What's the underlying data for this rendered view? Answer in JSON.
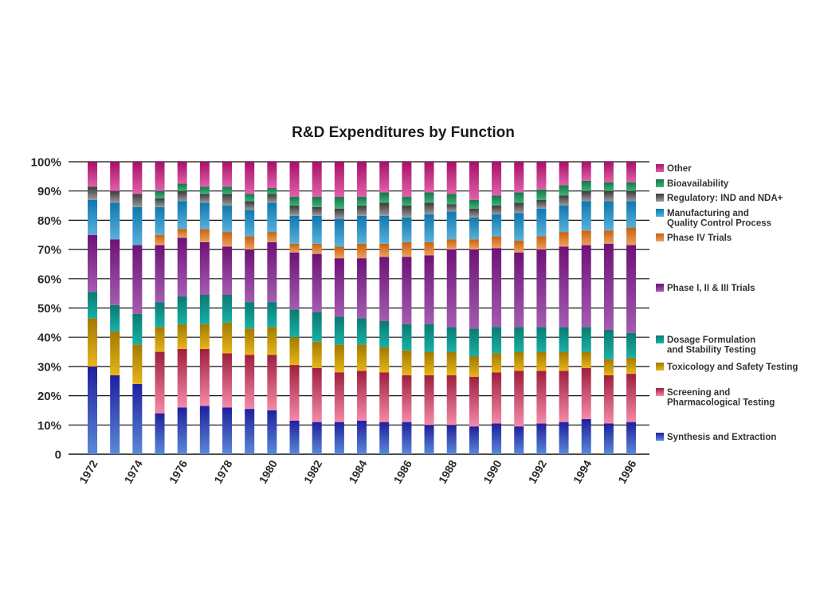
{
  "chart_data": {
    "type": "bar",
    "stacked": true,
    "normalized": true,
    "title": "R&D Expenditures by Function",
    "xlabel": "",
    "ylabel": "",
    "ylim": [
      0,
      100
    ],
    "yticks": [
      "0",
      "10%",
      "20%",
      "30%",
      "40%",
      "50%",
      "60%",
      "70%",
      "80%",
      "90%",
      "100%"
    ],
    "grid": "horizontal",
    "legend_position": "right",
    "categories": [
      "1972",
      "1973",
      "1974",
      "1975",
      "1976",
      "1977",
      "1978",
      "1979",
      "1980",
      "1981",
      "1982",
      "1983",
      "1984",
      "1985",
      "1986",
      "1987",
      "1988",
      "1989",
      "1990",
      "1991",
      "1992",
      "1993",
      "1994",
      "1995",
      "1996"
    ],
    "xtick_labels": [
      "1972",
      "",
      "1974",
      "",
      "1976",
      "",
      "1978",
      "",
      "1980",
      "",
      "1982",
      "",
      "1984",
      "",
      "1986",
      "",
      "1988",
      "",
      "1990",
      "",
      "1992",
      "",
      "1994",
      "",
      "1996"
    ],
    "series": [
      {
        "name": "Synthesis and Extraction",
        "color_top": "#1f1f9e",
        "color_bottom": "#5a8ad6",
        "values": [
          30,
          27,
          24,
          14,
          16,
          16.5,
          16,
          15.5,
          15,
          11.5,
          11,
          11,
          11.5,
          11,
          11,
          10,
          10,
          9.5,
          10.5,
          9.5,
          10.5,
          11,
          12,
          10.5,
          11
        ]
      },
      {
        "name": "Screening and Pharmacological Testing",
        "color_top": "#9e1f3e",
        "color_bottom": "#f58aa8",
        "values": [
          0,
          0,
          0,
          21,
          20,
          19.5,
          18.5,
          18.5,
          19,
          19,
          18.5,
          17,
          17,
          17,
          16,
          17,
          17,
          17,
          17.5,
          19,
          18,
          17.5,
          17.5,
          16.5,
          16.5
        ]
      },
      {
        "name": "Toxicology and Safety Testing",
        "color_top": "#a07a00",
        "color_bottom": "#e8b418",
        "values": [
          16.5,
          15,
          13.5,
          8.5,
          8.5,
          8.5,
          10.5,
          9,
          9.5,
          9.5,
          9,
          9.5,
          9,
          8.5,
          8.5,
          8,
          8,
          7,
          6.5,
          6.5,
          6.5,
          6.5,
          5.5,
          5.5,
          5.5
        ]
      },
      {
        "name": "Dosage Formulation and Stability Testing",
        "color_top": "#0a7a70",
        "color_bottom": "#18b0a8",
        "values": [
          9,
          9,
          10.5,
          8.5,
          9.5,
          10,
          9.5,
          9,
          8.5,
          9.5,
          10,
          9.5,
          9,
          9,
          9,
          9.5,
          8.5,
          9.5,
          9,
          8.5,
          8.5,
          8.5,
          8.5,
          10,
          8.5
        ]
      },
      {
        "name": "Phase I, II & III Trials",
        "color_top": "#6e1278",
        "color_bottom": "#a45cb0",
        "values": [
          19.5,
          22.5,
          23.5,
          19.5,
          20,
          18,
          16.5,
          18,
          20.5,
          19.5,
          20,
          20,
          20.5,
          22,
          23,
          23.5,
          26.5,
          27,
          27,
          25.5,
          26.5,
          27.5,
          28,
          29.5,
          30
        ]
      },
      {
        "name": "Phase IV Trials",
        "color_top": "#c8620e",
        "color_bottom": "#eca060",
        "values": [
          0,
          0,
          0,
          3.5,
          3,
          4.5,
          5,
          4.5,
          3.5,
          3,
          3.5,
          4,
          5,
          4.5,
          5,
          4.5,
          3.5,
          3.5,
          4,
          4,
          4.5,
          5,
          5,
          4.5,
          6
        ]
      },
      {
        "name": "Manufacturing and Quality Control Process",
        "color_top": "#0e78b0",
        "color_bottom": "#5ab0d8",
        "values": [
          12,
          12.5,
          13,
          9.5,
          9.5,
          9,
          9,
          9,
          10,
          9.5,
          9.5,
          9.5,
          9.5,
          9.5,
          8.5,
          9.5,
          9.5,
          7.5,
          7.5,
          9.5,
          9.5,
          9,
          10,
          10,
          9
        ]
      },
      {
        "name": "Regulatory: IND and NDA+",
        "color_top": "#3a3a3a",
        "color_bottom": "#9a9a9a",
        "values": [
          4.5,
          4,
          4.5,
          3,
          3.5,
          3,
          4,
          3,
          3,
          3.5,
          3,
          3.5,
          3.5,
          4.5,
          4,
          4,
          2.5,
          3,
          3,
          3.5,
          3,
          3.5,
          3.5,
          3.5,
          3.5
        ]
      },
      {
        "name": "Bioavailability",
        "color_top": "#12784a",
        "color_bottom": "#40b07a",
        "values": [
          0,
          0,
          0,
          2.5,
          2.5,
          2.5,
          2.5,
          2.5,
          2,
          3,
          3.5,
          4,
          3,
          3.5,
          3,
          3.5,
          3.5,
          3,
          3.5,
          3.5,
          3.5,
          3.5,
          3.5,
          3,
          3
        ]
      },
      {
        "name": "Other",
        "color_top": "#a8106a",
        "color_bottom": "#e060a8",
        "values": [
          8.5,
          10,
          11,
          10,
          7.5,
          8.5,
          8.5,
          11,
          9,
          12,
          12,
          12,
          12,
          10.5,
          12,
          10.5,
          11,
          13,
          11.5,
          10.5,
          9.5,
          8,
          6.5,
          7,
          7
        ]
      }
    ],
    "legend": [
      {
        "label_lines": [
          "Other"
        ],
        "series": 9
      },
      {
        "label_lines": [
          "Bioavailability"
        ],
        "series": 8
      },
      {
        "label_lines": [
          "Regulatory: IND and NDA+"
        ],
        "series": 7
      },
      {
        "label_lines": [
          "Manufacturing and",
          "Quality Control Process"
        ],
        "series": 6
      },
      {
        "label_lines": [
          "Phase IV Trials"
        ],
        "series": 5
      },
      {
        "label_lines": [
          "Phase I, II & III Trials"
        ],
        "series": 4
      },
      {
        "label_lines": [
          "Dosage Formulation",
          "and Stability Testing"
        ],
        "series": 3
      },
      {
        "label_lines": [
          "Toxicology and Safety Testing"
        ],
        "series": 2
      },
      {
        "label_lines": [
          "Screening and",
          "Pharmacological Testing"
        ],
        "series": 1
      },
      {
        "label_lines": [
          "Synthesis and Extraction"
        ],
        "series": 0
      }
    ]
  }
}
